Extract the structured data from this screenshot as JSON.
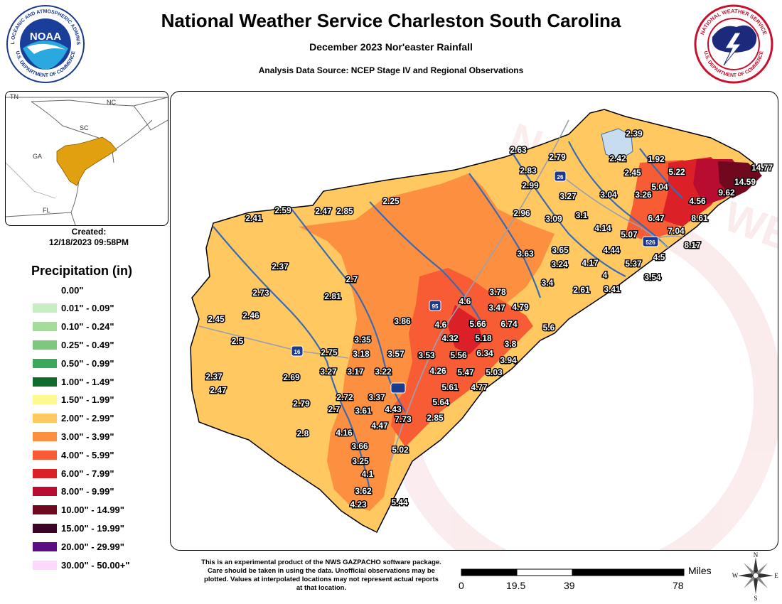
{
  "header": {
    "title": "National Weather Service Charleston South Carolina",
    "subtitle": "December 2023 Nor'easter Rainfall",
    "source": "Analysis Data Source: NCEP Stage IV and Regional Observations",
    "noaa_logo_text": "NOAA",
    "noaa_ring_text": "NATIONAL OCEANIC AND ATMOSPHERIC ADMINISTRATION",
    "noaa_ring_text_bottom": "U.S. DEPARTMENT OF COMMERCE",
    "nws_ring_text": "NATIONAL WEATHER SERVICE",
    "nws_ring_text_bottom": "U.S. DEPARTMENT OF COMMERCE"
  },
  "inset": {
    "labels": [
      "TN",
      "NC",
      "SC",
      "GA",
      "FL"
    ],
    "highlight_color": "#e0a010"
  },
  "created": {
    "label": "Created:",
    "date": "12/18/2023 09:58PM"
  },
  "legend": {
    "title": "Precipitation (in)",
    "items": [
      {
        "label": "0.00\"",
        "color": "#ffffff"
      },
      {
        "label": "0.01\" - 0.09\"",
        "color": "#c8ecc4"
      },
      {
        "label": "0.10\" - 0.24\"",
        "color": "#a4dc9c"
      },
      {
        "label": "0.25\" - 0.49\"",
        "color": "#7cc87c"
      },
      {
        "label": "0.50\" - 0.99\"",
        "color": "#3ca858"
      },
      {
        "label": "1.00\" - 1.49\"",
        "color": "#106c2c"
      },
      {
        "label": "1.50\" - 1.99\"",
        "color": "#fff890"
      },
      {
        "label": "2.00\" - 2.99\"",
        "color": "#ffc860"
      },
      {
        "label": "3.00\" - 3.99\"",
        "color": "#fc9040"
      },
      {
        "label": "4.00\" - 5.99\"",
        "color": "#f85c34"
      },
      {
        "label": "6.00\" - 7.99\"",
        "color": "#dc2028"
      },
      {
        "label": "8.00\" - 9.99\"",
        "color": "#b80c30"
      },
      {
        "label": "10.00\" - 14.99\"",
        "color": "#700820"
      },
      {
        "label": "15.00\" - 19.99\"",
        "color": "#3c0428"
      },
      {
        "label": "20.00\" - 29.99\"",
        "color": "#5c0c84"
      },
      {
        "label": "30.00\" - 50.00+\"",
        "color": "#fcd8fc"
      }
    ]
  },
  "map": {
    "highways": [
      "95",
      "26",
      "16",
      "526"
    ],
    "values": [
      "2.39",
      "2.63",
      "2.79",
      "2.42",
      "1.92",
      "2.45",
      "5.22",
      "14.77",
      "14.59",
      "2.83",
      "2.99",
      "5.04",
      "9.62",
      "4.56",
      "3.27",
      "3.04",
      "3.26",
      "2.59",
      "2.47",
      "2.85",
      "2.25",
      "2.41",
      "2.96",
      "6.47",
      "8.61",
      "3.09",
      "3.1",
      "4.14",
      "5.07",
      "7.04",
      "8.17",
      "3.63",
      "3.65",
      "4.44",
      "2.37",
      "3.24",
      "4.17",
      "5.37",
      "4.5",
      "2.7",
      "4",
      "3.54",
      "3.4",
      "2.61",
      "3.41",
      "2.73",
      "2.81",
      "3.78",
      "4.6",
      "3.47",
      "4.79",
      "2.45",
      "2.46",
      "3.86",
      "4.6",
      "5.66",
      "6.74",
      "5.6",
      "3.35",
      "4.32",
      "5.18",
      "2.5",
      "3.8",
      "2.75",
      "3.18",
      "3.57",
      "3.53",
      "5.56",
      "6.34",
      "3.94",
      "3.27",
      "3.17",
      "3.22",
      "4.26",
      "5.47",
      "5.03",
      "2.37",
      "2.69",
      "2.47",
      "5.61",
      "4.77",
      "2.72",
      "3.37",
      "2.79",
      "2.7",
      "3.61",
      "4.43",
      "5.64",
      "7.73",
      "2.85",
      "2.8",
      "4.47",
      "4.16",
      "3.66",
      "5.02",
      "3.25",
      "4.1",
      "3.62",
      "5.44",
      "4.23"
    ]
  },
  "watermark_text": "NATIONAL WEATHER SERVICE DEPARTMENT OF COMMERCE",
  "disclaimer": "This is an experimental product of the NWS GAZPACHO software package. Care should be taken in using the data. Unofficial observations may be plotted. Values at interpolated locations may not represent actual reports at that location.",
  "scale": {
    "unit": "Miles",
    "ticks": [
      "0",
      "19.5",
      "39",
      "78"
    ]
  },
  "compass": {
    "n": "N",
    "s": "S",
    "e": "E",
    "w": "W"
  }
}
